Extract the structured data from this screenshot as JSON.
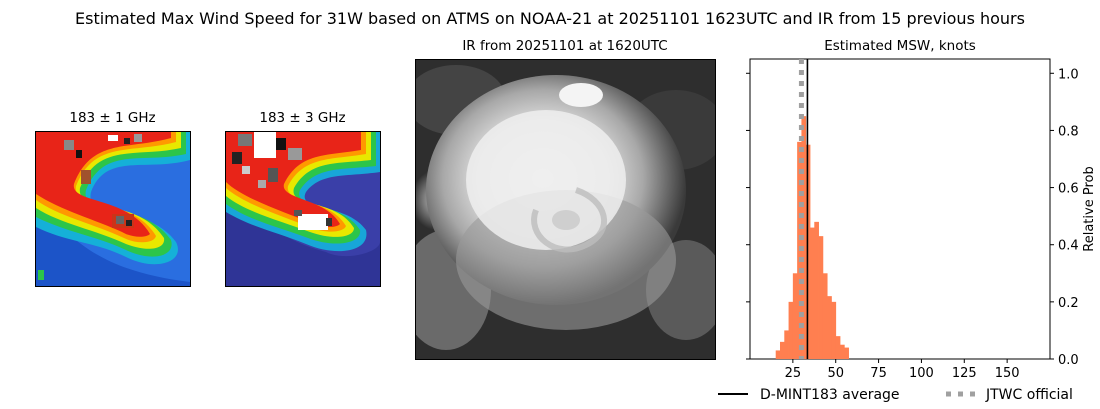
{
  "figure": {
    "title": "Estimated Max Wind Speed for 31W based on ATMS on NOAA-21 at 20251101 1623UTC and IR from 15 previous hours"
  },
  "panels": {
    "mw1": {
      "title": "183 ± 1 GHz"
    },
    "mw2": {
      "title": "183 ± 3 GHz"
    },
    "ir": {
      "title": "IR from 20251101 at 1620UTC"
    }
  },
  "colors": {
    "histogram": "#ff7f50",
    "average_line": "#000000",
    "official_line": "#a0a0a0"
  },
  "chart_data": {
    "type": "bar",
    "title": "Estimated MSW, knots",
    "xlabel": "",
    "ylabel": "Relative Prob",
    "xlim": [
      0,
      175
    ],
    "ylim": [
      0,
      1.05
    ],
    "xticks": [
      25,
      50,
      75,
      100,
      125,
      150
    ],
    "yticks": [
      0.0,
      0.2,
      0.4,
      0.6,
      0.8,
      1.0
    ],
    "ytick_labels": [
      "0.0",
      "0.2",
      "0.4",
      "0.6",
      "0.8",
      "1.0"
    ],
    "y_axis_side": "right",
    "bin_width": 2.5,
    "bins": [
      {
        "x0": 15.0,
        "value": 0.03
      },
      {
        "x0": 17.5,
        "value": 0.06
      },
      {
        "x0": 20.0,
        "value": 0.1
      },
      {
        "x0": 22.5,
        "value": 0.2
      },
      {
        "x0": 25.0,
        "value": 0.3
      },
      {
        "x0": 27.5,
        "value": 0.76
      },
      {
        "x0": 30.0,
        "value": 0.85
      },
      {
        "x0": 32.5,
        "value": 0.75
      },
      {
        "x0": 35.0,
        "value": 0.46
      },
      {
        "x0": 37.5,
        "value": 0.48
      },
      {
        "x0": 40.0,
        "value": 0.43
      },
      {
        "x0": 42.5,
        "value": 0.3
      },
      {
        "x0": 45.0,
        "value": 0.22
      },
      {
        "x0": 47.5,
        "value": 0.2
      },
      {
        "x0": 50.0,
        "value": 0.08
      },
      {
        "x0": 52.5,
        "value": 0.05
      },
      {
        "x0": 55.0,
        "value": 0.04
      }
    ],
    "average": 33.5,
    "official": 30,
    "legend": [
      {
        "label": "D-MINT183 average",
        "style": "solid"
      },
      {
        "label": "JTWC official",
        "style": "dotted"
      }
    ],
    "legend_position": "bottom"
  }
}
